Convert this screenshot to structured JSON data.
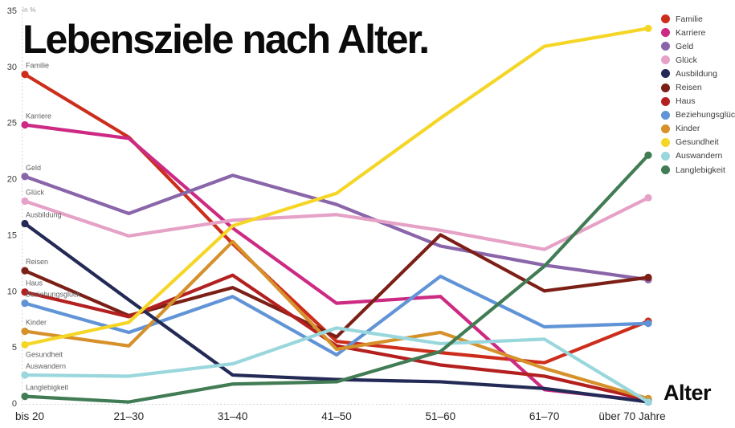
{
  "title": "Lebensziele nach Alter.",
  "unit_label": "in %",
  "x_axis_title": "Alter",
  "chart_data": {
    "type": "line",
    "categories": [
      "bis 20",
      "21–30",
      "31–40",
      "41–50",
      "51–60",
      "61–70",
      "über 70 Jahre"
    ],
    "y_ticks": [
      0,
      5,
      10,
      15,
      20,
      25,
      30,
      35
    ],
    "ylim": [
      0,
      35
    ],
    "grid": "dotted left axis and dotted baseline only",
    "legend_position": "top-right",
    "series": [
      {
        "name": "Familie",
        "color": "#cd2e1c",
        "values": [
          29.3,
          23.7,
          14.2,
          5.5,
          4.5,
          3.6,
          7.3
        ]
      },
      {
        "name": "Karriere",
        "color": "#cd2a84",
        "values": [
          24.8,
          23.6,
          15.6,
          8.9,
          9.5,
          1.2,
          0.2
        ]
      },
      {
        "name": "Geld",
        "color": "#8a65aa",
        "values": [
          20.2,
          16.9,
          20.3,
          17.7,
          14.0,
          12.3,
          11.0
        ]
      },
      {
        "name": "Glück",
        "color": "#e5a2c6",
        "values": [
          18.0,
          14.9,
          16.3,
          16.8,
          15.4,
          13.7,
          18.3
        ]
      },
      {
        "name": "Ausbildung",
        "color": "#232a55",
        "values": [
          16.0,
          9.2,
          2.5,
          2.1,
          1.9,
          1.3,
          0.1
        ]
      },
      {
        "name": "Reisen",
        "color": "#7c2017",
        "values": [
          11.8,
          7.8,
          10.3,
          5.9,
          15.0,
          10.0,
          11.2
        ]
      },
      {
        "name": "Haus",
        "color": "#b3201f",
        "values": [
          9.9,
          7.7,
          11.4,
          5.1,
          3.4,
          2.4,
          0.3
        ]
      },
      {
        "name": "Beziehungsglück",
        "color": "#6194d6",
        "values": [
          8.9,
          6.3,
          9.5,
          4.3,
          11.3,
          6.8,
          7.1
        ]
      },
      {
        "name": "Kinder",
        "color": "#d6912b",
        "values": [
          6.4,
          5.1,
          14.4,
          4.8,
          6.3,
          3.1,
          0.4
        ]
      },
      {
        "name": "Gesundheit",
        "color": "#f5d626",
        "values": [
          5.2,
          7.2,
          15.8,
          18.7,
          25.4,
          31.8,
          33.4
        ]
      },
      {
        "name": "Auswandern",
        "color": "#99d7dc",
        "values": [
          2.5,
          2.4,
          3.5,
          6.7,
          5.3,
          5.7,
          0.1
        ]
      },
      {
        "name": "Langlebigkeit",
        "color": "#417c54",
        "values": [
          0.6,
          0.1,
          1.7,
          1.9,
          4.6,
          12.2,
          22.1
        ]
      }
    ]
  }
}
